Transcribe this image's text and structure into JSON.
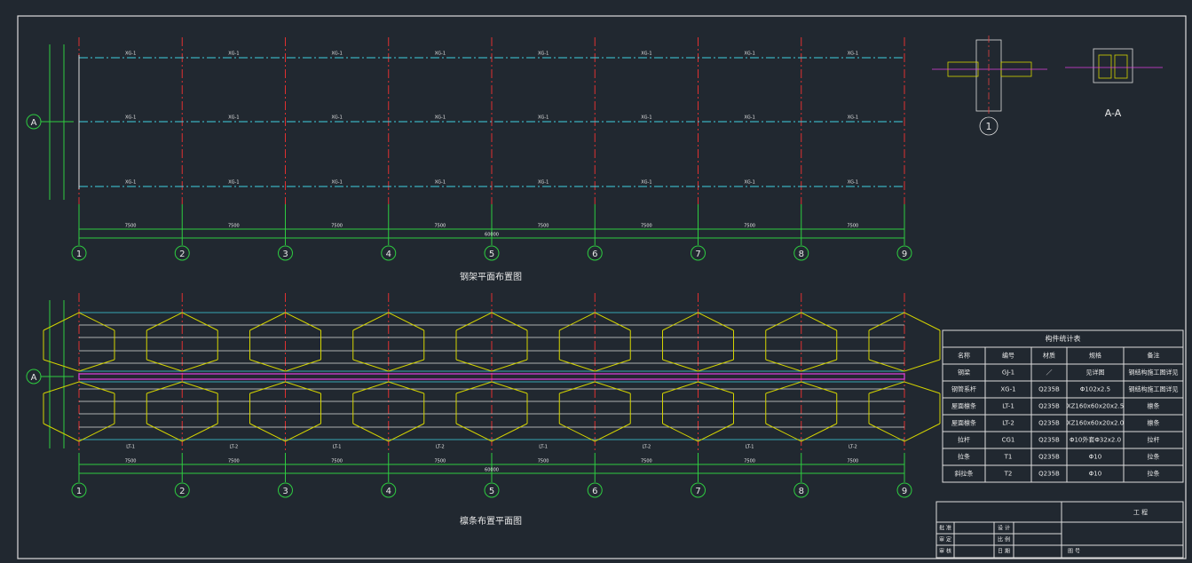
{
  "axes": [
    "1",
    "2",
    "3",
    "4",
    "5",
    "6",
    "7",
    "8",
    "9"
  ],
  "row_axis": "A",
  "span_dim": "7500",
  "total_dim": "60000",
  "frame_plan": {
    "title": "钢架平面布置图"
  },
  "purlin_plan": {
    "title": "檩条布置平面图"
  },
  "detail": {
    "section": "A-A",
    "node": "1"
  },
  "table": {
    "title": "构件统计表",
    "header": [
      "名称",
      "编号",
      "材质",
      "规格",
      "备注"
    ],
    "rows": [
      [
        "钢梁",
        "GJ-1",
        "／",
        "见详图",
        "钢结构施工图详见"
      ],
      [
        "钢管系杆",
        "XG-1",
        "Q235B",
        "Φ102x2.5",
        "钢结构施工图详见"
      ],
      [
        "屋面檩条",
        "LT-1",
        "Q235B",
        "XZ160x60x20x2.5",
        "檩条"
      ],
      [
        "屋面檩条",
        "LT-2",
        "Q235B",
        "XZ160x60x20x2.0",
        "檩条"
      ],
      [
        "拉杆",
        "CG1",
        "Q235B",
        "Φ10外套Φ32x2.0",
        "拉杆"
      ],
      [
        "拉条",
        "T1",
        "Q235B",
        "Φ10",
        "拉条"
      ],
      [
        "斜拉条",
        "T2",
        "Q235B",
        "Φ10",
        "拉条"
      ]
    ]
  },
  "title_block": {
    "project": "工 程",
    "left": [
      "批 准",
      "审 定",
      "审 核"
    ],
    "mid": [
      "设 计",
      "比 例",
      "日 期"
    ],
    "drawing_no": "图 号"
  }
}
